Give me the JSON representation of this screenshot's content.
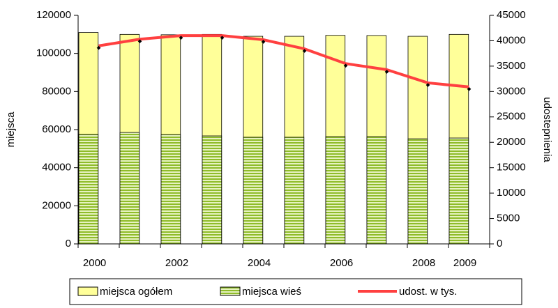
{
  "chart_data": {
    "type": "bar",
    "categories": [
      "2000",
      null,
      "2002",
      null,
      "2004",
      null,
      "2006",
      null,
      "2008",
      "2009"
    ],
    "series": [
      {
        "name": "miejsca ogółem",
        "color": "#ffff99",
        "values": [
          111000,
          110000,
          109800,
          110000,
          109000,
          109000,
          109500,
          109400,
          109000,
          110000
        ]
      },
      {
        "name": "miejsca wieś",
        "color": "#8fbc2a",
        "pattern": "horizontal stripes",
        "values": [
          57500,
          58500,
          57400,
          56700,
          56000,
          56000,
          56300,
          56300,
          55200,
          55600
        ]
      },
      {
        "name": "udost. w tys.",
        "type": "line",
        "axis": "y2",
        "color": "#ff4040",
        "values": [
          39000,
          40300,
          41000,
          41000,
          40200,
          38400,
          35500,
          34300,
          31700,
          30900
        ]
      }
    ],
    "ylabel": "miejsca",
    "y2label": "udostepnienia",
    "ylim": [
      0,
      120000
    ],
    "yticks": [
      0,
      20000,
      40000,
      60000,
      80000,
      100000,
      120000
    ],
    "y2lim": [
      0,
      45000
    ],
    "y2ticks": [
      0,
      5000,
      10000,
      15000,
      20000,
      25000,
      30000,
      35000,
      40000,
      45000
    ],
    "legend": "bottom",
    "grid": false
  }
}
